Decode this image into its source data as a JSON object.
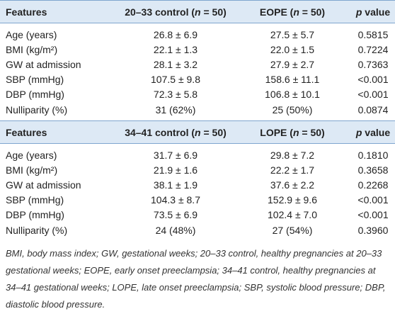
{
  "tables": [
    {
      "header": [
        [
          "Features"
        ],
        [
          "20–33 control (",
          "n",
          " = 50)"
        ],
        [
          "EOPE (",
          "n",
          " = 50)"
        ],
        [
          "p",
          " value"
        ]
      ],
      "rows": [
        [
          "Age (years)",
          "26.8 ± 6.9",
          "27.5 ± 5.7",
          "0.5815"
        ],
        [
          "BMI (kg/m²)",
          "22.1 ± 1.3",
          "22.0 ± 1.5",
          "0.7224"
        ],
        [
          "GW at admission",
          "28.1 ± 3.2",
          "27.9 ± 2.7",
          "0.7363"
        ],
        [
          "SBP (mmHg)",
          "107.5 ± 9.8",
          "158.6 ± 11.1",
          "<0.001"
        ],
        [
          "DBP (mmHg)",
          "72.3 ± 5.8",
          "106.8 ± 10.1",
          "<0.001"
        ],
        [
          "Nulliparity (%)",
          "31 (62%)",
          "25 (50%)",
          "0.0874"
        ]
      ]
    },
    {
      "header": [
        [
          "Features"
        ],
        [
          "34–41 control (",
          "n",
          " = 50)"
        ],
        [
          "LOPE (",
          "n",
          " = 50)"
        ],
        [
          "p",
          " value"
        ]
      ],
      "rows": [
        [
          "Age (years)",
          "31.7 ± 6.9",
          "29.8 ± 7.2",
          "0.1810"
        ],
        [
          "BMI (kg/m²)",
          "21.9 ± 1.6",
          "22.2 ± 1.7",
          "0.3658"
        ],
        [
          "GW at admission",
          "38.1 ± 1.9",
          "37.6 ± 2.2",
          "0.2268"
        ],
        [
          "SBP (mmHg)",
          "104.3 ± 8.7",
          "152.9 ± 9.6",
          "<0.001"
        ],
        [
          "DBP (mmHg)",
          "73.5 ± 6.9",
          "102.4 ± 7.0",
          "<0.001"
        ],
        [
          "Nulliparity (%)",
          "24 (48%)",
          "27 (54%)",
          "0.3960"
        ]
      ]
    }
  ],
  "footnote": "BMI, body mass index; GW, gestational weeks; 20–33 control, healthy pregnancies at 20–33 gestational weeks; EOPE, early onset preeclampsia; 34–41 control, healthy pregnancies at 34–41 gestational weeks; LOPE, late onset preeclampsia; SBP, systolic blood pressure; DBP, diastolic blood pressure."
}
